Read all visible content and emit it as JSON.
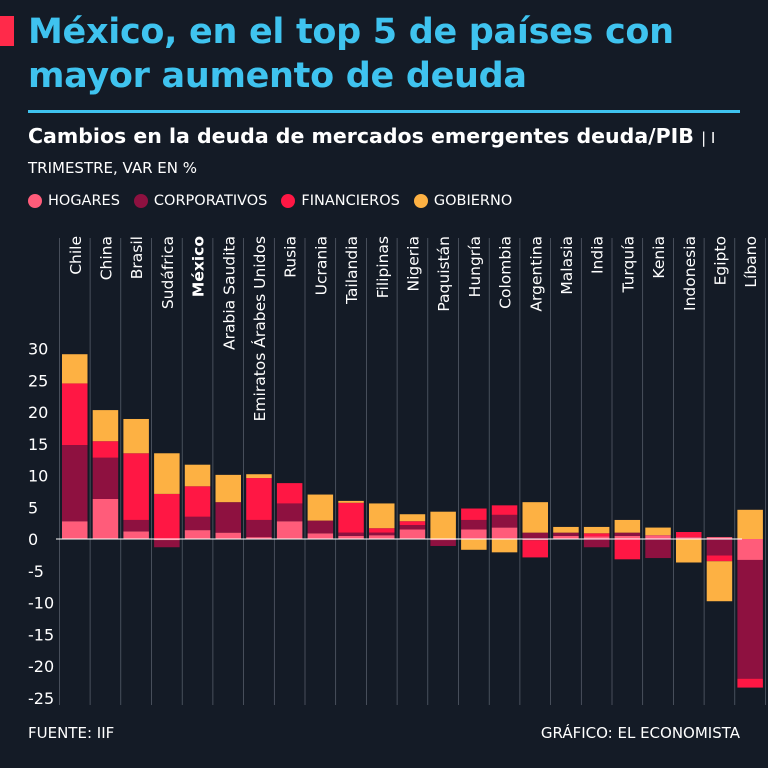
{
  "header": {
    "title": "México, en el top 5 de países con mayor aumento de deuda",
    "subtitle_main": "Cambios en la deuda de mercados emergentes deuda/PIB",
    "subtitle_unit": "| I  TRIMESTRE, VAR EN %"
  },
  "colors": {
    "background": "#141b26",
    "accent": "#ff2a4a",
    "title": "#3fc3ef",
    "hogares": "#ff5c7a",
    "corporativos": "#8e1140",
    "financieros": "#ff1744",
    "gobierno": "#fdb143"
  },
  "chart_data": {
    "type": "bar",
    "stacked": true,
    "title": "Cambios en la deuda de mercados emergentes deuda/PIB",
    "xlabel": "",
    "ylabel": "",
    "ylim": [
      -25,
      30
    ],
    "yticks": [
      30,
      25,
      20,
      15,
      10,
      5,
      0,
      -5,
      -10,
      -15,
      -20,
      -25
    ],
    "highlight": "México",
    "categories": [
      "Chile",
      "China",
      "Brasil",
      "Sudáfrica",
      "México",
      "Arabia Saudita",
      "Emiratos Árabes Unidos",
      "Rusia",
      "Ucrania",
      "Tailandia",
      "Filipinas",
      "Nigeria",
      "Paquistán",
      "Hungría",
      "Colombia",
      "Argentina",
      "Malasia",
      "India",
      "Turquía",
      "Kenia",
      "Indonesia",
      "Egipto",
      "Líbano"
    ],
    "series": [
      {
        "name": "HOGARES",
        "values": [
          2.8,
          6.3,
          1.2,
          -0.2,
          1.4,
          1.0,
          0.3,
          2.8,
          0.9,
          0.5,
          0.6,
          1.5,
          -0.2,
          1.5,
          1.8,
          -0.2,
          0.5,
          0.4,
          0.5,
          0.6,
          0.3,
          0.3,
          -3.3
        ]
      },
      {
        "name": "CORPORATIVOS",
        "values": [
          12.0,
          6.5,
          1.8,
          -1.1,
          2.1,
          4.8,
          2.7,
          2.8,
          2.0,
          0.5,
          0.4,
          0.7,
          -0.9,
          1.5,
          2.0,
          1.0,
          0.5,
          -1.3,
          0.5,
          -3.0,
          0.0,
          -2.6,
          -18.7
        ]
      },
      {
        "name": "FINANCIEROS",
        "values": [
          9.7,
          2.6,
          10.5,
          7.1,
          4.8,
          0.0,
          6.6,
          3.2,
          0.0,
          4.7,
          0.7,
          0.6,
          0.0,
          1.8,
          1.5,
          -2.7,
          0.0,
          0.5,
          -3.2,
          0.0,
          0.8,
          -0.9,
          -1.4
        ]
      },
      {
        "name": "GOBIERNO",
        "values": [
          4.6,
          4.9,
          5.4,
          6.4,
          3.4,
          4.3,
          0.6,
          0.0,
          4.1,
          0.3,
          3.9,
          1.1,
          4.3,
          -1.7,
          -2.1,
          4.8,
          0.9,
          1.0,
          2.0,
          1.2,
          -3.7,
          -6.3,
          4.6
        ]
      }
    ]
  },
  "footer": {
    "source": "FUENTE: IIF",
    "credit": "GRÁFICO: EL ECONOMISTA"
  }
}
